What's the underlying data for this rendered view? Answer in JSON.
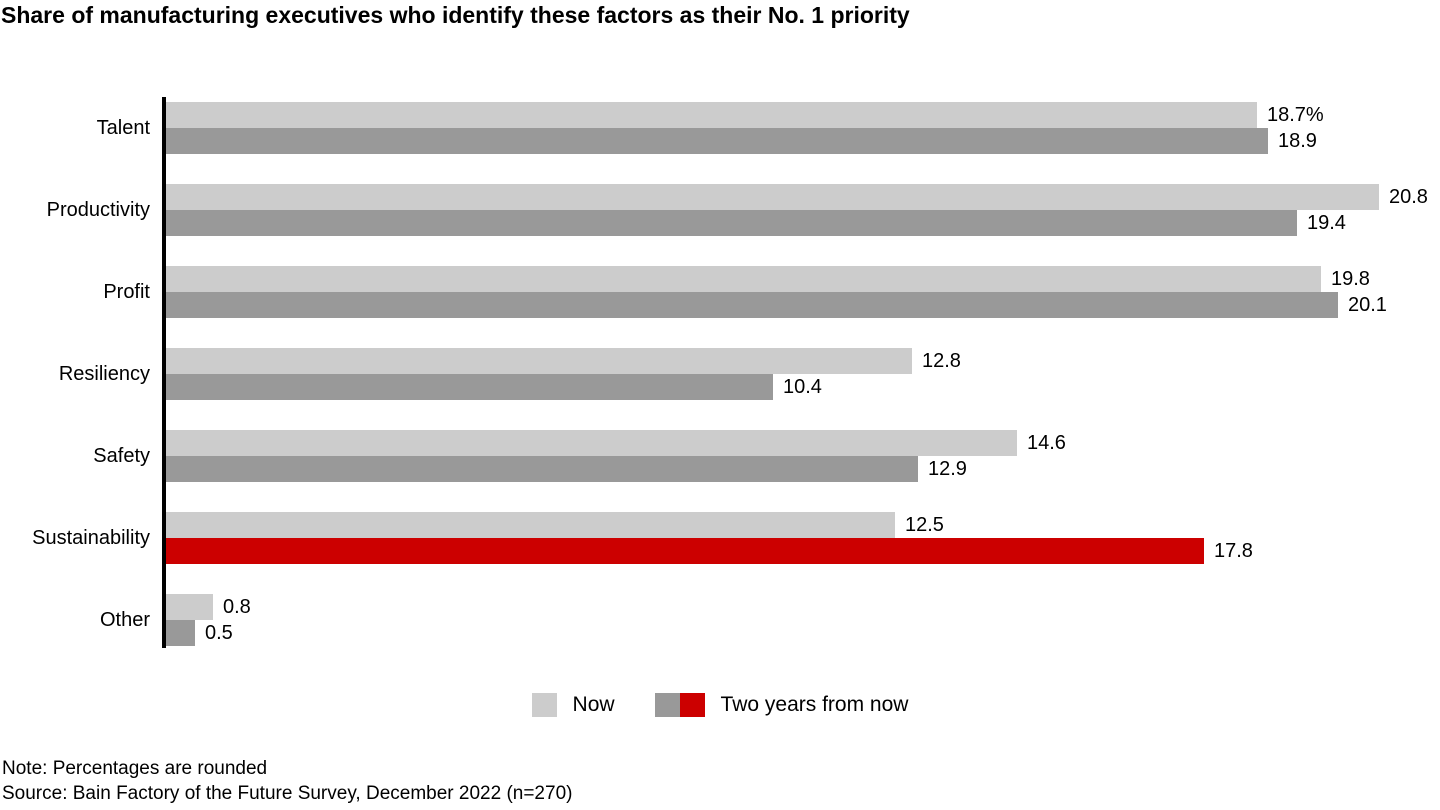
{
  "title": "Share of manufacturing executives who identify these factors as their No. 1 priority",
  "colors": {
    "now_bar": "#CCCCCC",
    "future_bar": "#999999",
    "highlight_bar": "#CC0000",
    "axis": "#000000",
    "text": "#000000"
  },
  "chart_data": {
    "type": "bar",
    "orientation": "horizontal",
    "title": "Share of manufacturing executives who identify these factors as their No. 1 priority",
    "categories": [
      "Talent",
      "Productivity",
      "Profit",
      "Resiliency",
      "Safety",
      "Sustainability",
      "Other"
    ],
    "series": [
      {
        "name": "Now",
        "color": "#CCCCCC",
        "values": [
          18.7,
          20.8,
          19.8,
          12.8,
          14.6,
          12.5,
          0.8
        ],
        "labels": [
          "18.7%",
          "20.8",
          "19.8",
          "12.8",
          "14.6",
          "12.5",
          "0.8"
        ]
      },
      {
        "name": "Two years from now",
        "color": "#999999",
        "highlight_index": 5,
        "highlight_color": "#CC0000",
        "values": [
          18.9,
          19.4,
          20.1,
          10.4,
          12.9,
          17.8,
          0.5
        ],
        "labels": [
          "18.9",
          "19.4",
          "20.1",
          "10.4",
          "12.9",
          "17.8",
          "0.5"
        ]
      }
    ],
    "xlim": [
      0,
      20.8
    ],
    "value_unit": "percent",
    "grid": false,
    "legend_position": "bottom",
    "annotations": "Sustainability two-years-from-now bar highlighted in red"
  },
  "legend": {
    "items": [
      {
        "label": "Now",
        "colors": [
          "#CCCCCC"
        ]
      },
      {
        "label": "Two years from now",
        "colors": [
          "#999999",
          "#CC0000"
        ]
      }
    ]
  },
  "notes": [
    "Note: Percentages are rounded",
    "Source: Bain Factory of the Future Survey, December 2022 (n=270)"
  ]
}
